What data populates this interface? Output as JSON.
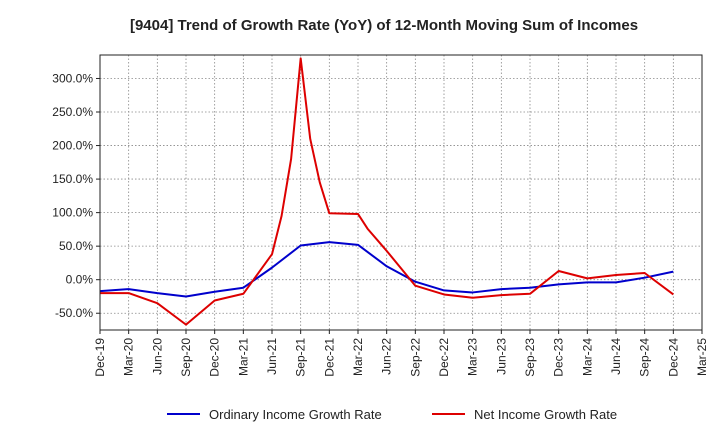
{
  "chart_data": {
    "type": "line",
    "title": "[9404]  Trend of Growth Rate (YoY) of 12-Month Moving Sum of Incomes",
    "xlabel": "",
    "ylabel": "",
    "ylim": [
      -75,
      335
    ],
    "y_ticks": [
      -50,
      0,
      50,
      100,
      150,
      200,
      250,
      300
    ],
    "y_tick_labels": [
      "-50.0%",
      "0.0%",
      "50.0%",
      "100.0%",
      "150.0%",
      "200.0%",
      "250.0%",
      "300.0%"
    ],
    "x_tick_labels": [
      "Dec-19",
      "Mar-20",
      "Jun-20",
      "Sep-20",
      "Dec-20",
      "Mar-21",
      "Jun-21",
      "Sep-21",
      "Dec-21",
      "Mar-22",
      "Jun-22",
      "Sep-22",
      "Dec-22",
      "Mar-23",
      "Jun-23",
      "Sep-23",
      "Dec-23",
      "Mar-24",
      "Jun-24",
      "Sep-24",
      "Dec-24",
      "Mar-25"
    ],
    "x_range_months": [
      "2019-12",
      "2025-03"
    ],
    "grid": true,
    "legend_position": "bottom",
    "series": [
      {
        "name": "Ordinary Income Growth Rate",
        "color": "#0000cc",
        "points": [
          [
            "2019-12",
            -17
          ],
          [
            "2020-03",
            -14
          ],
          [
            "2020-06",
            -20
          ],
          [
            "2020-09",
            -25
          ],
          [
            "2020-12",
            -18
          ],
          [
            "2021-03",
            -12
          ],
          [
            "2021-06",
            18
          ],
          [
            "2021-09",
            51
          ],
          [
            "2021-12",
            56
          ],
          [
            "2022-03",
            52
          ],
          [
            "2022-06",
            20
          ],
          [
            "2022-09",
            -3
          ],
          [
            "2022-12",
            -16
          ],
          [
            "2023-03",
            -19
          ],
          [
            "2023-06",
            -14
          ],
          [
            "2023-09",
            -12
          ],
          [
            "2023-12",
            -7
          ],
          [
            "2024-03",
            -4
          ],
          [
            "2024-06",
            -4
          ],
          [
            "2024-09",
            3
          ],
          [
            "2024-12",
            12
          ]
        ]
      },
      {
        "name": "Net Income Growth Rate",
        "color": "#dd0000",
        "points": [
          [
            "2019-12",
            -20
          ],
          [
            "2020-03",
            -20
          ],
          [
            "2020-06",
            -35
          ],
          [
            "2020-09",
            -67
          ],
          [
            "2020-12",
            -31
          ],
          [
            "2021-03",
            -21
          ],
          [
            "2021-06",
            38
          ],
          [
            "2021-07",
            95
          ],
          [
            "2021-08",
            180
          ],
          [
            "2021-09",
            330
          ],
          [
            "2021-10",
            210
          ],
          [
            "2021-11",
            145
          ],
          [
            "2021-12",
            99
          ],
          [
            "2022-03",
            98
          ],
          [
            "2022-04",
            76
          ],
          [
            "2022-06",
            43
          ],
          [
            "2022-09",
            -9
          ],
          [
            "2022-12",
            -22
          ],
          [
            "2023-03",
            -27
          ],
          [
            "2023-06",
            -23
          ],
          [
            "2023-09",
            -21
          ],
          [
            "2023-12",
            13
          ],
          [
            "2024-03",
            2
          ],
          [
            "2024-06",
            7
          ],
          [
            "2024-09",
            10
          ],
          [
            "2024-12",
            -22
          ]
        ]
      }
    ]
  }
}
